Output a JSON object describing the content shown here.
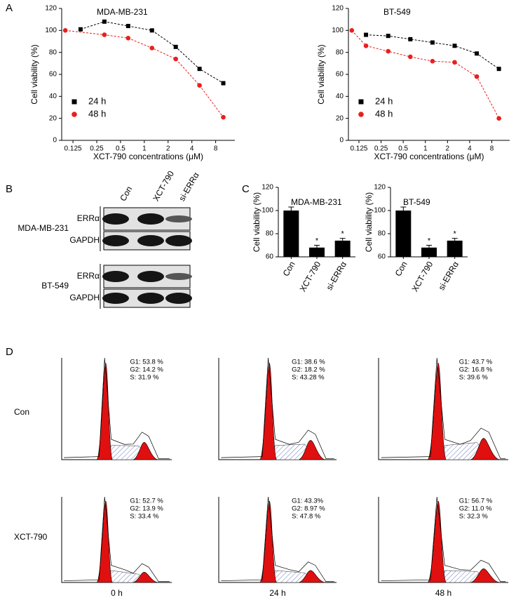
{
  "panel_labels": [
    "A",
    "B",
    "C",
    "D"
  ],
  "chart_data": [
    {
      "type": "line",
      "title": "MDA-MB-231",
      "xlabel": "XCT-790 concentrations (μM)",
      "ylabel": "Cell viability (%)",
      "xscale": "log",
      "xlim": [
        0.09,
        14
      ],
      "xticks": [
        0.125,
        0.25,
        0.5,
        1,
        2,
        4,
        8
      ],
      "ylim": [
        0,
        120
      ],
      "yticks": [
        0,
        20,
        40,
        60,
        80,
        100,
        120
      ],
      "legend": "lower left",
      "series": [
        {
          "name": "24 h",
          "color": "#000000",
          "marker": "square",
          "x": [
            0.156,
            0.3125,
            0.625,
            1.25,
            2.5,
            5,
            10
          ],
          "values": [
            101,
            108,
            104,
            100,
            85,
            65,
            52
          ]
        },
        {
          "name": "48 h",
          "color": "#e8201e",
          "marker": "circle",
          "x": [
            0.1,
            0.3125,
            0.625,
            1.25,
            2.5,
            5,
            10
          ],
          "values": [
            100,
            96,
            93,
            84,
            74,
            50,
            21
          ]
        }
      ]
    },
    {
      "type": "line",
      "title": "BT-549",
      "xlabel": "XCT-790 concentrations (μM)",
      "ylabel": "Cell viability (%)",
      "xscale": "log",
      "xlim": [
        0.09,
        14
      ],
      "xticks": [
        0.125,
        0.25,
        0.5,
        1,
        2,
        4,
        8
      ],
      "ylim": [
        0,
        120
      ],
      "yticks": [
        0,
        20,
        40,
        60,
        80,
        100,
        120
      ],
      "legend": "lower left",
      "series": [
        {
          "name": "24 h",
          "color": "#000000",
          "marker": "square",
          "x": [
            0.156,
            0.3125,
            0.625,
            1.25,
            2.5,
            5,
            10
          ],
          "values": [
            96,
            95,
            92,
            89,
            86,
            79,
            65
          ]
        },
        {
          "name": "48 h",
          "color": "#e8201e",
          "marker": "circle",
          "x": [
            0.1,
            0.156,
            0.3125,
            0.625,
            1.25,
            2.5,
            5,
            10
          ],
          "values": [
            100,
            86,
            81,
            76,
            72,
            71,
            58,
            20
          ]
        }
      ]
    },
    {
      "type": "bar",
      "title": "MDA-MB-231",
      "ylabel": "Cell viability (%)",
      "categories": [
        "Con",
        "XCT-790",
        "si-ERRα"
      ],
      "values": [
        100,
        68,
        74
      ],
      "errors": [
        3,
        2,
        2
      ],
      "significance": [
        null,
        "*",
        "*"
      ],
      "color": "#000000",
      "ylim": [
        60,
        120
      ],
      "yticks": [
        60,
        80,
        100,
        120
      ]
    },
    {
      "type": "bar",
      "title": "BT-549",
      "ylabel": "Cell viability (%)",
      "categories": [
        "Con",
        "XCT-790",
        "si-ERRα"
      ],
      "values": [
        100,
        68,
        74
      ],
      "errors": [
        3,
        2,
        2
      ],
      "significance": [
        null,
        "*",
        "*"
      ],
      "color": "#000000",
      "ylim": [
        60,
        120
      ],
      "yticks": [
        60,
        80,
        100,
        120
      ]
    }
  ],
  "western_blot": {
    "lanes": [
      "Con",
      "XCT-790",
      "si-ERRα"
    ],
    "cell_lines": [
      {
        "name": "MDA-MB-231",
        "proteins": [
          "ERRα",
          "GAPDH"
        ]
      },
      {
        "name": "BT-549",
        "proteins": [
          "ERRα",
          "GAPDH"
        ]
      }
    ]
  },
  "cell_cycle": {
    "rows": [
      "Con",
      "XCT-790"
    ],
    "columns": [
      "0 h",
      "24 h",
      "48 h"
    ],
    "panels": [
      [
        [
          "G1: 53.8 %",
          "G2: 14.2 %",
          "S: 31.9 %"
        ],
        [
          "G1: 38.6 %",
          "G2: 18.2 %",
          "S: 43.28 %"
        ],
        [
          "G1: 43.7 %",
          "G2: 16.8 %",
          "S: 39.6 %"
        ]
      ],
      [
        [
          "G1: 52.7 %",
          "G2: 13.9 %",
          "S: 33.4 %"
        ],
        [
          "G1: 43.3%",
          "G2: 8.97 %",
          "S: 47.8 %"
        ],
        [
          "G1: 56.7 %",
          "G2: 11.0 %",
          "S: 32.3 %"
        ]
      ]
    ]
  }
}
